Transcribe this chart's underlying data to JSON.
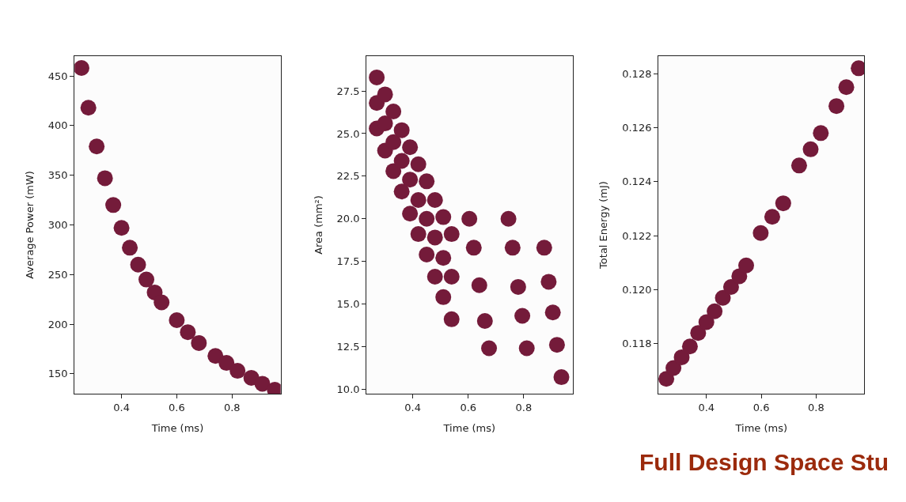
{
  "chart_data": [
    {
      "type": "scatter",
      "xlabel": "Time (ms)",
      "ylabel": "Average Power (mW)",
      "marker": "circle",
      "xlim": [
        0.23,
        0.976
      ],
      "xticks": [
        0.4,
        0.6,
        0.8
      ],
      "ylim": [
        130,
        470
      ],
      "yticks": [
        150,
        200,
        250,
        300,
        350,
        400,
        450
      ],
      "x": [
        0.255,
        0.28,
        0.31,
        0.34,
        0.37,
        0.4,
        0.43,
        0.46,
        0.49,
        0.52,
        0.545,
        0.6,
        0.64,
        0.68,
        0.74,
        0.78,
        0.82,
        0.87,
        0.91,
        0.955
      ],
      "series": [
        {
          "color": "#741b3a",
          "values": [
            458,
            418,
            379,
            347,
            320,
            297,
            277,
            260,
            245,
            232,
            222,
            204,
            192,
            181,
            168,
            161,
            153,
            146,
            140,
            134
          ]
        }
      ]
    },
    {
      "type": "scatter",
      "xlabel": "Time (ms)",
      "ylabel": "Area (mm²)",
      "marker": "circle",
      "xlim": [
        0.233,
        0.976
      ],
      "xticks": [
        0.4,
        0.6,
        0.8
      ],
      "ylim": [
        9.73,
        29.55
      ],
      "yticks": [
        {
          "value": 10,
          "label": "10.0"
        },
        {
          "value": 12.5,
          "label": "12.5"
        },
        {
          "value": 15,
          "label": "15.0"
        },
        {
          "value": 17.5,
          "label": "17.5"
        },
        {
          "value": 20,
          "label": "20.0"
        },
        {
          "value": 22.5,
          "label": "22.5"
        },
        {
          "value": 25,
          "label": "25.0"
        },
        {
          "value": 27.5,
          "label": "27.5"
        }
      ],
      "x": [
        0.27,
        0.27,
        0.27,
        0.3,
        0.3,
        0.3,
        0.33,
        0.33,
        0.33,
        0.36,
        0.36,
        0.36,
        0.39,
        0.39,
        0.39,
        0.42,
        0.42,
        0.42,
        0.45,
        0.45,
        0.45,
        0.48,
        0.48,
        0.48,
        0.51,
        0.51,
        0.51,
        0.54,
        0.54,
        0.54,
        0.604,
        0.62,
        0.64,
        0.66,
        0.675,
        0.745,
        0.76,
        0.78,
        0.795,
        0.811,
        0.874,
        0.89,
        0.905,
        0.92,
        0.936
      ],
      "series": [
        {
          "color": "#741b3a",
          "values": [
            28.3,
            26.8,
            25.3,
            27.3,
            25.6,
            24.0,
            26.3,
            24.5,
            22.8,
            25.2,
            23.4,
            21.6,
            24.2,
            22.3,
            20.3,
            23.2,
            21.1,
            19.1,
            22.2,
            20.0,
            17.9,
            21.1,
            18.9,
            16.6,
            20.1,
            17.7,
            15.4,
            19.1,
            16.6,
            14.1,
            20.0,
            18.3,
            16.1,
            14.0,
            12.4,
            20.0,
            18.3,
            16.0,
            14.3,
            12.4,
            18.3,
            16.3,
            14.5,
            12.6,
            10.7
          ]
        }
      ]
    },
    {
      "type": "scatter",
      "xlabel": "Time (ms)",
      "ylabel": "Total Energy (mJ)",
      "marker": "circle",
      "xlim": [
        0.225,
        0.976
      ],
      "xticks": [
        0.4,
        0.6,
        0.8
      ],
      "ylim": [
        0.11615,
        0.12865
      ],
      "yticks": [
        0.118,
        {
          "value": 0.12,
          "label": "0.120"
        },
        0.122,
        0.124,
        0.126,
        0.128
      ],
      "x": [
        0.254,
        0.28,
        0.31,
        0.34,
        0.37,
        0.4,
        0.43,
        0.46,
        0.49,
        0.52,
        0.545,
        0.598,
        0.64,
        0.68,
        0.738,
        0.78,
        0.817,
        0.874,
        0.91,
        0.955
      ],
      "series": [
        {
          "color": "#741b3a",
          "values": [
            0.1167,
            0.1171,
            0.1175,
            0.1179,
            0.1184,
            0.1188,
            0.1192,
            0.1197,
            0.1201,
            0.1205,
            0.1209,
            0.1221,
            0.1227,
            0.1232,
            0.1246,
            0.1252,
            0.1258,
            0.1268,
            0.1275,
            0.1282
          ]
        }
      ],
      "annotations": [
        "Full Design Space Stu"
      ]
    }
  ]
}
